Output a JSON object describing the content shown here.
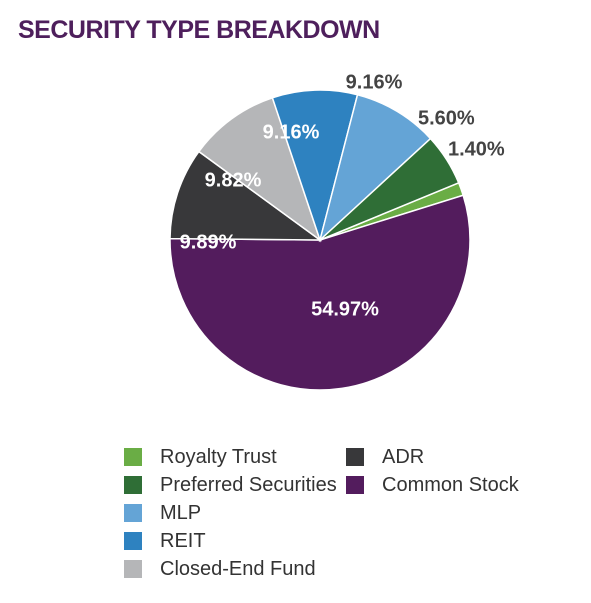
{
  "title": "SECURITY TYPE BREAKDOWN",
  "chart_data": {
    "type": "pie",
    "slices": [
      {
        "name": "Royalty Trust",
        "value": 1.4,
        "label": "1.40%",
        "color": "#6aad45"
      },
      {
        "name": "Common Stock",
        "value": 54.97,
        "label": "54.97%",
        "color": "#531c5d"
      },
      {
        "name": "ADR",
        "value": 9.89,
        "label": "9.89%",
        "color": "#38383a"
      },
      {
        "name": "Closed-End Fund",
        "value": 9.82,
        "label": "9.82%",
        "color": "#b5b6b8"
      },
      {
        "name": "REIT",
        "value": 9.16,
        "label": "9.16%",
        "color": "#2e82c0"
      },
      {
        "name": "MLP",
        "value": 9.16,
        "label": "9.16%",
        "color": "#64a4d6"
      },
      {
        "name": "Preferred Securities",
        "value": 5.6,
        "label": "5.60%",
        "color": "#2f6e36"
      }
    ],
    "legend": {
      "left": [
        {
          "name": "Royalty Trust",
          "color": "#6aad45"
        },
        {
          "name": "Preferred Securities",
          "color": "#2f6e36"
        },
        {
          "name": "MLP",
          "color": "#64a4d6"
        },
        {
          "name": "REIT",
          "color": "#2e82c0"
        },
        {
          "name": "Closed-End Fund",
          "color": "#b5b6b8"
        }
      ],
      "right": [
        {
          "name": "ADR",
          "color": "#38383a"
        },
        {
          "name": "Common Stock",
          "color": "#531c5d"
        }
      ]
    }
  }
}
